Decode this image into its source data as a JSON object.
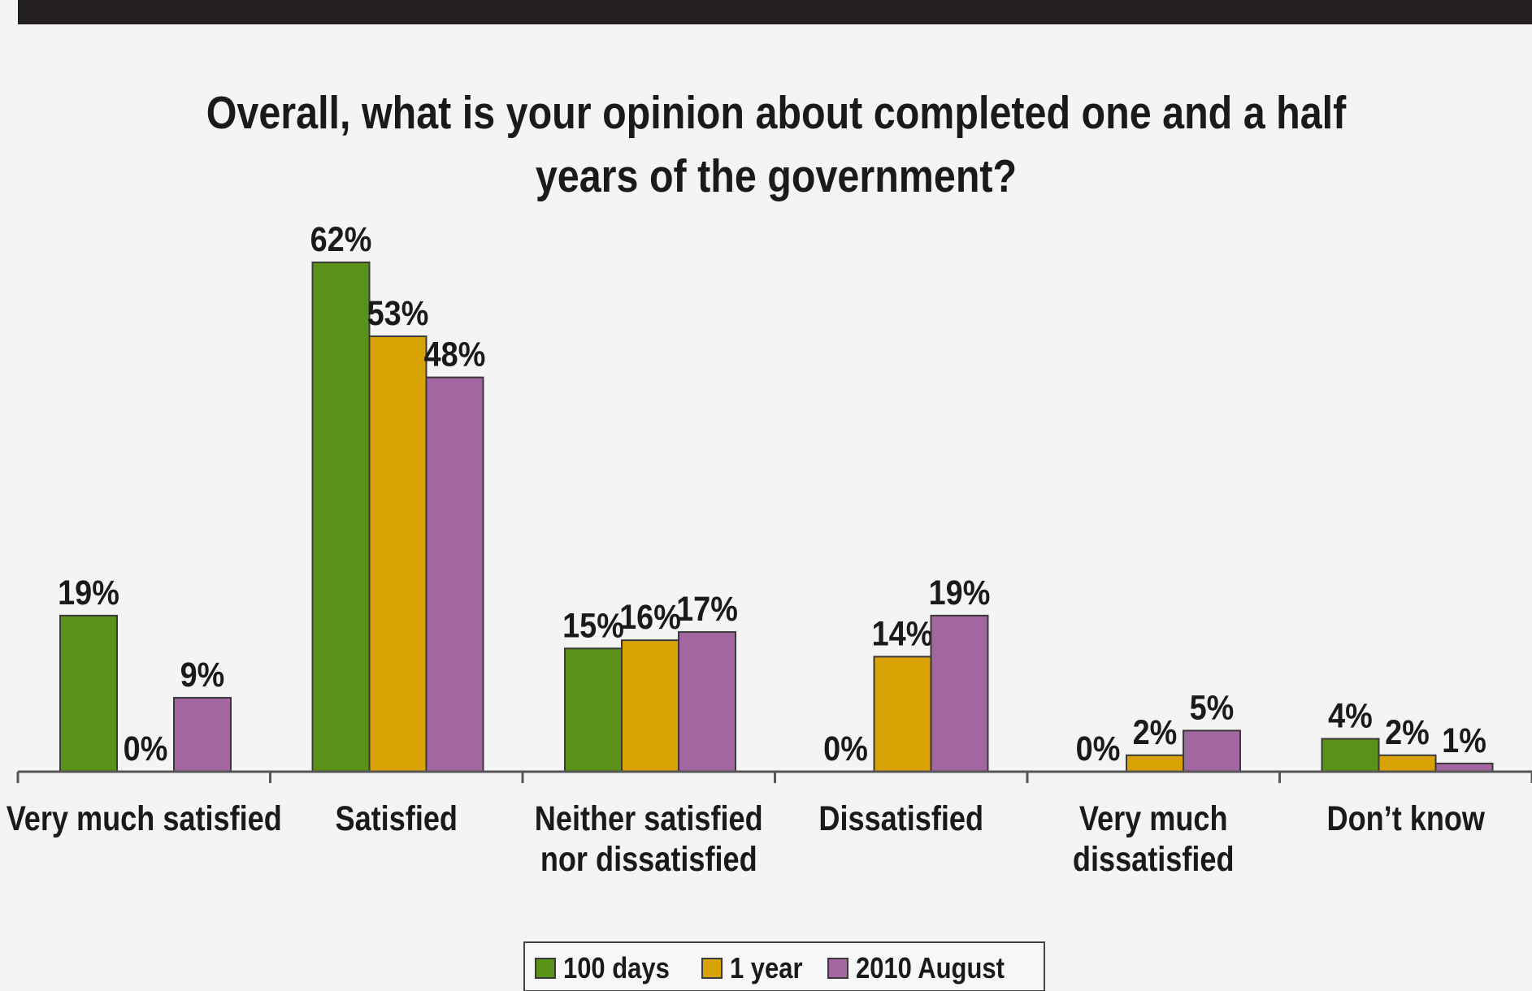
{
  "colors": {
    "series": [
      "#5a9118",
      "#d9a204",
      "#a266a1"
    ],
    "bar_stroke": "#3a3a3a",
    "axis": "#555555",
    "text": "#1a1a1a",
    "top_bar": "#231f20"
  },
  "chart_data": {
    "type": "bar",
    "title_lines": [
      "Overall, what is your opinion about completed one and a half",
      "years of the government?"
    ],
    "categories": [
      [
        "Very much satisfied"
      ],
      [
        "Satisfied"
      ],
      [
        "Neither satisfied",
        "nor dissatisfied"
      ],
      [
        "Dissatisfied"
      ],
      [
        "Very much",
        "dissatisfied"
      ],
      [
        "Don’t know"
      ]
    ],
    "series": [
      {
        "name": "100 days",
        "values": [
          19,
          62,
          15,
          0,
          0,
          4
        ]
      },
      {
        "name": "1 year",
        "values": [
          0,
          53,
          16,
          14,
          2,
          2
        ]
      },
      {
        "name": "2010 August",
        "values": [
          9,
          48,
          17,
          19,
          5,
          1
        ]
      }
    ],
    "value_suffix": "%",
    "ylim": [
      0,
      62
    ],
    "legend_position": "bottom-center",
    "grid": false
  }
}
